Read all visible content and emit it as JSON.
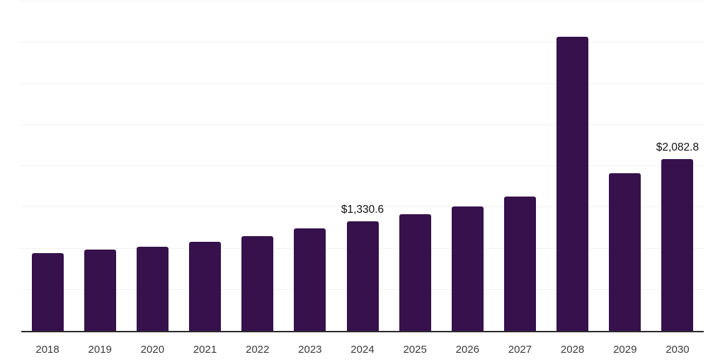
{
  "chart": {
    "bar_color": "#36114C",
    "axis_color": "#2b2b2b",
    "gridline_color": "#f1f1f1",
    "value_label_color": "#101010",
    "tick_label_color": "#3a3a3a",
    "background_color": "#ffffff"
  },
  "chart_data": {
    "type": "bar",
    "title": "",
    "xlabel": "",
    "ylabel": "",
    "categories": [
      "2018",
      "2019",
      "2020",
      "2021",
      "2022",
      "2023",
      "2024",
      "2025",
      "2026",
      "2027",
      "2028",
      "2029",
      "2030"
    ],
    "values": [
      945,
      985,
      1020,
      1080,
      1150,
      1245,
      1330.6,
      1415,
      1510,
      1630,
      3570,
      1915,
      2082.8
    ],
    "value_labels": {
      "2024": "$1,330.6",
      "2030": "$2,082.8"
    },
    "ylim": [
      0,
      4000
    ],
    "grid_step": 500,
    "grid": "horizontal lines only, no y-axis tick labels",
    "legend_position": "none"
  }
}
